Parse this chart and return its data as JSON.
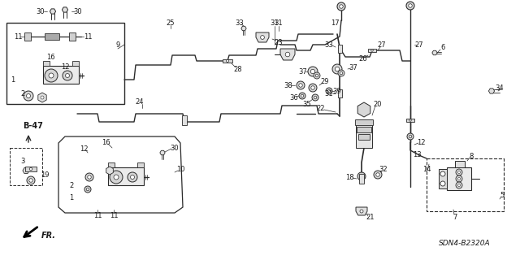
{
  "background_color": "#ffffff",
  "diagram_code": "SDN4-B2320A",
  "fig_width": 6.4,
  "fig_height": 3.2,
  "dpi": 100,
  "line_color": "#2a2a2a",
  "text_color": "#1a1a1a"
}
